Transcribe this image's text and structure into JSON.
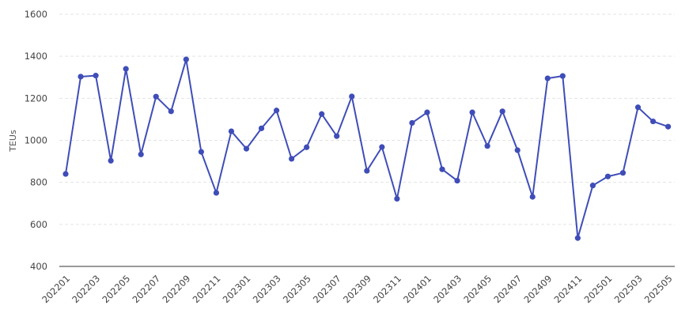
{
  "chart_data": {
    "type": "line",
    "title": "",
    "xlabel": "",
    "ylabel": "TEUs",
    "ylim": [
      400,
      1600
    ],
    "yticks": [
      400,
      600,
      800,
      1000,
      1200,
      1400,
      1600
    ],
    "grid": true,
    "legend": "none",
    "x": [
      "202201",
      "202202",
      "202203",
      "202204",
      "202205",
      "202206",
      "202207",
      "202208",
      "202209",
      "202210",
      "202211",
      "202212",
      "202301",
      "202302",
      "202303",
      "202304",
      "202305",
      "202306",
      "202307",
      "202308",
      "202309",
      "202310",
      "202311",
      "202312",
      "202401",
      "202402",
      "202403",
      "202404",
      "202405",
      "202406",
      "202407",
      "202408",
      "202409",
      "202410",
      "202411",
      "202412",
      "202501",
      "202502",
      "202503",
      "202504",
      "202505"
    ],
    "x_tick_labels": [
      "202201",
      "202203",
      "202205",
      "202207",
      "202209",
      "202211",
      "202301",
      "202303",
      "202305",
      "202307",
      "202309",
      "202311",
      "202401",
      "202403",
      "202405",
      "202407",
      "202409",
      "202411",
      "202501",
      "202503",
      "202505"
    ],
    "series": [
      {
        "color": "#3f4db8",
        "values": [
          840,
          1303,
          1308,
          903,
          1340,
          933,
          1208,
          1138,
          1385,
          945,
          750,
          1043,
          960,
          1057,
          1142,
          912,
          967,
          1125,
          1020,
          1209,
          855,
          968,
          722,
          1083,
          1133,
          862,
          808,
          1133,
          973,
          1138,
          953,
          731,
          1295,
          1306,
          535,
          785,
          828,
          845,
          1157,
          1090,
          1065
        ]
      }
    ]
  }
}
